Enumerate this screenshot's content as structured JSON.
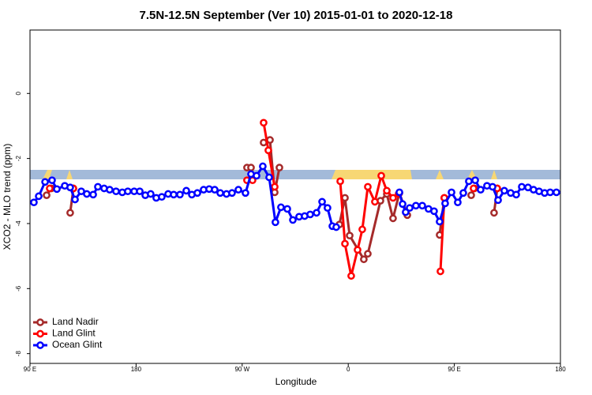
{
  "chart_data": {
    "type": "line",
    "title": "7.5N-12.5N September (Ver 10)   2015-01-01 to 2020-12-18",
    "x_label": "Longitude",
    "y_label": "XCO2 - MLO trend (ppm)",
    "xlim": [
      90,
      540
    ],
    "ylim": [
      -8.3,
      1.95
    ],
    "xticks": [
      {
        "value": 90,
        "label": "90 E"
      },
      {
        "value": 180,
        "label": "180"
      },
      {
        "value": 270,
        "label": "90 W"
      },
      {
        "value": 360,
        "label": "0"
      },
      {
        "value": 450,
        "label": "90 E"
      },
      {
        "value": 540,
        "label": "180"
      }
    ],
    "yticks": [
      0,
      -2,
      -4,
      -6,
      -8
    ],
    "legend": "bottom-left",
    "series": [
      {
        "name": "Land Nadir",
        "color": "#a52a2a",
        "x": [
          104.1,
          108.1,
          null,
          124.1,
          126.8,
          null,
          274.1,
          277.5,
          null,
          288.2,
          293.6,
          297.6,
          301.6,
          null,
          352.5,
          357.2,
          361.2,
          373.2,
          376.6,
          387.3,
          392.7,
          398.0,
          403.4,
          410.1,
          null,
          437.5,
          441.5,
          null,
          464.3,
          467.0,
          null,
          483.7,
          486.4
        ],
        "values": [
          -3.13,
          -2.92,
          null,
          -3.67,
          -2.92,
          null,
          -2.28,
          -2.28,
          null,
          -1.51,
          -1.43,
          -3.04,
          -2.28,
          null,
          -4.03,
          -3.21,
          -4.37,
          -5.1,
          -4.93,
          -3.3,
          -3.09,
          -3.84,
          -3.06,
          -3.74,
          null,
          -4.35,
          -3.21,
          null,
          -3.13,
          -2.92,
          null,
          -3.67,
          -2.92
        ]
      },
      {
        "name": "Land Glint",
        "color": "#ff0000",
        "x": [
          106.7,
          null,
          126.8,
          null,
          274.1,
          278.8,
          null,
          288.2,
          292.2,
          297.6,
          null,
          353.2,
          357.2,
          362.5,
          367.9,
          371.9,
          376.6,
          382.6,
          388.0,
          392.7,
          398.0,
          402.7,
          null,
          438.2,
          441.5,
          null,
          466.3,
          null,
          486.4
        ],
        "values": [
          -2.92,
          null,
          -2.92,
          null,
          -2.67,
          -2.67,
          null,
          -0.9,
          -1.75,
          -2.87,
          null,
          -2.7,
          -4.62,
          -5.61,
          -4.81,
          -4.18,
          -2.87,
          -3.33,
          -2.53,
          -2.99,
          -3.21,
          -3.09,
          null,
          -5.47,
          -3.21,
          null,
          -2.92,
          null,
          -2.92
        ]
      },
      {
        "name": "Ocean Glint",
        "color": "#0000ff",
        "x": [
          93.3,
          97.4,
          102.8,
          108.7,
          112.8,
          119.5,
          124.1,
          128.2,
          133.5,
          138.2,
          143.6,
          147.6,
          152.9,
          157.6,
          163.0,
          168.3,
          173.0,
          178.4,
          183.1,
          187.8,
          192.4,
          197.1,
          201.8,
          207.2,
          211.9,
          217.2,
          222.6,
          227.3,
          232.0,
          237.3,
          242.0,
          246.7,
          251.4,
          256.7,
          261.4,
          266.8,
          272.8,
          277.5,
          282.2,
          287.5,
          292.9,
          298.2,
          302.9,
          308.3,
          313.0,
          318.3,
          323.0,
          327.7,
          333.1,
          337.8,
          342.4,
          346.5,
          349.8,
          null,
          403.4,
          406.1,
          408.7,
          412.1,
          417.4,
          422.8,
          428.1,
          432.8,
          437.5,
          442.2,
          447.6,
          452.9,
          457.6,
          462.3,
          467.7,
          472.3,
          477.7,
          482.4,
          487.1,
          492.4,
          497.8,
          502.5,
          507.2,
          512.5,
          517.2,
          521.9,
          526.6,
          531.3,
          536.6
        ],
        "values": [
          -3.35,
          -3.16,
          -2.72,
          -2.67,
          -2.94,
          -2.84,
          -2.89,
          -3.26,
          -3.01,
          -3.09,
          -3.11,
          -2.87,
          -2.92,
          -2.96,
          -3.01,
          -3.04,
          -3.01,
          -3.01,
          -3.01,
          -3.13,
          -3.09,
          -3.21,
          -3.18,
          -3.09,
          -3.11,
          -3.11,
          -2.99,
          -3.11,
          -3.06,
          -2.96,
          -2.94,
          -2.96,
          -3.06,
          -3.09,
          -3.06,
          -2.96,
          -3.06,
          -2.48,
          -2.53,
          -2.24,
          -2.58,
          -3.96,
          -3.5,
          -3.55,
          -3.89,
          -3.79,
          -3.77,
          -3.72,
          -3.67,
          -3.33,
          -3.52,
          -4.08,
          -4.11,
          null,
          -3.04,
          -3.4,
          -3.65,
          -3.52,
          -3.45,
          -3.45,
          -3.55,
          -3.62,
          -3.94,
          -3.38,
          -3.04,
          -3.35,
          -3.06,
          -2.7,
          -2.67,
          -2.96,
          -2.84,
          -2.87,
          -3.28,
          -2.99,
          -3.06,
          -3.11,
          -2.87,
          -2.89,
          -2.96,
          -3.01,
          -3.06,
          -3.04,
          -3.04
        ]
      }
    ]
  }
}
